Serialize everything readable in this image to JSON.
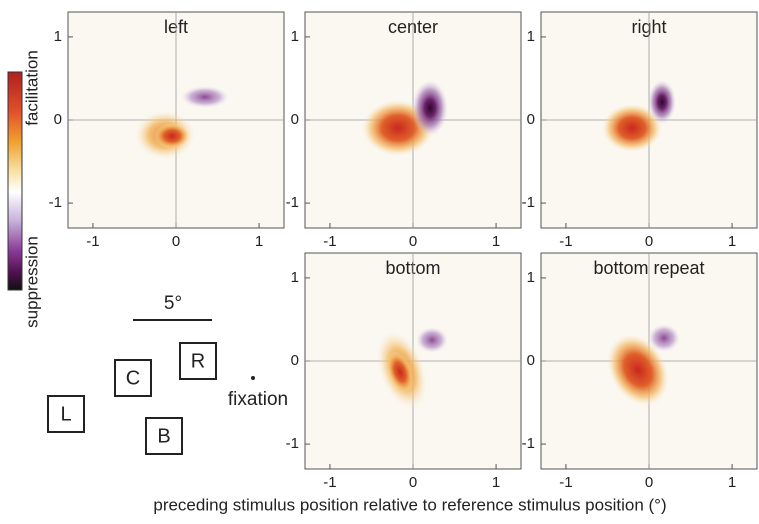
{
  "colorbar": {
    "top_label": "facilitation",
    "bottom_label": "suppression"
  },
  "panels": [
    {
      "title": "left",
      "xlim": [
        -1.3,
        1.3
      ],
      "ylim": [
        -1.3,
        1.3
      ],
      "xticks": [
        -1,
        0,
        1
      ],
      "yticks": [
        -1,
        0,
        1
      ]
    },
    {
      "title": "center",
      "xlim": [
        -1.3,
        1.3
      ],
      "ylim": [
        -1.3,
        1.3
      ],
      "xticks": [
        -1,
        0,
        1
      ],
      "yticks": [
        -1,
        0,
        1
      ]
    },
    {
      "title": "right",
      "xlim": [
        -1.3,
        1.3
      ],
      "ylim": [
        -1.3,
        1.3
      ],
      "xticks": [
        -1,
        0,
        1
      ],
      "yticks": [
        -1,
        0,
        1
      ]
    },
    {
      "title": "bottom",
      "xlim": [
        -1.3,
        1.3
      ],
      "ylim": [
        -1.3,
        1.3
      ],
      "xticks": [
        -1,
        0,
        1
      ],
      "yticks": [
        -1,
        0,
        1
      ]
    },
    {
      "title": "bottom repeat",
      "xlim": [
        -1.3,
        1.3
      ],
      "ylim": [
        -1.3,
        1.3
      ],
      "xticks": [
        -1,
        0,
        1
      ],
      "yticks": [
        -1,
        0,
        1
      ]
    }
  ],
  "stimulus_map": {
    "scale_label": "5°",
    "boxes": [
      "L",
      "C",
      "R",
      "B"
    ],
    "fixation_label": "fixation"
  },
  "x_axis_label": "preceding stimulus position relative to reference stimulus position (°)"
}
